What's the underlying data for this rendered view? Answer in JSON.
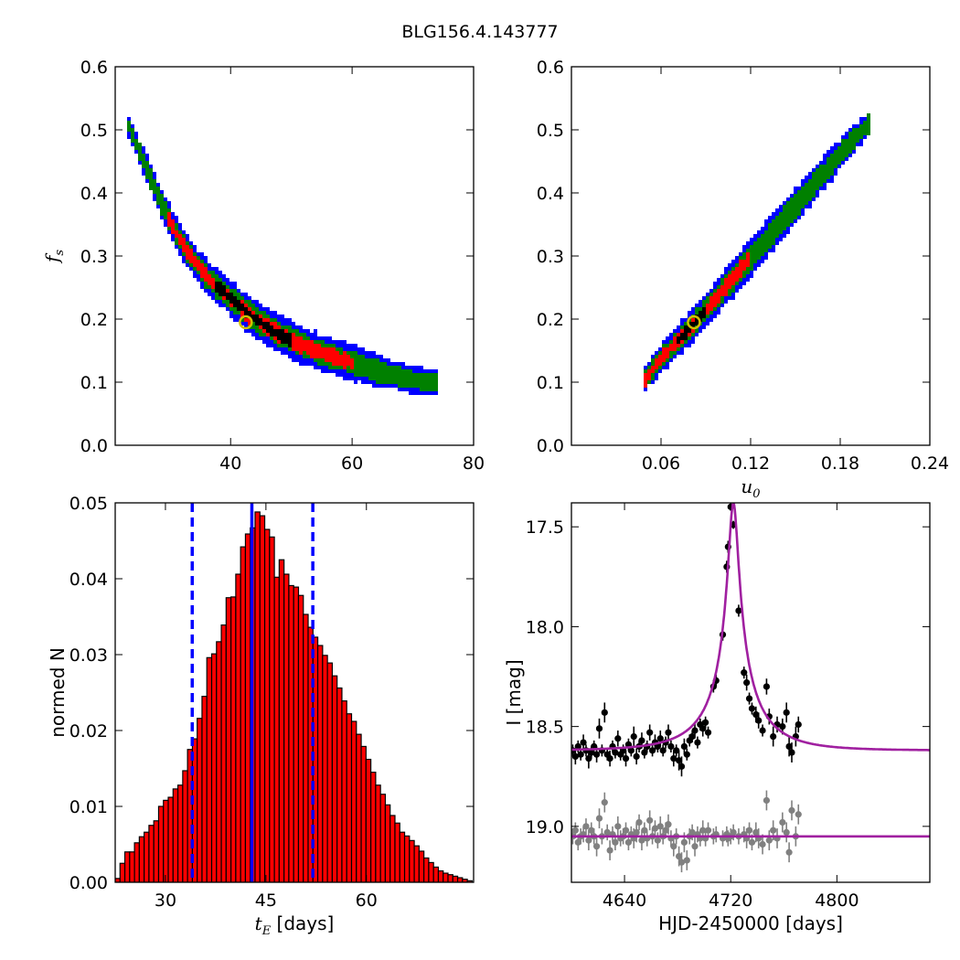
{
  "figure": {
    "suptitle": "BLG156.4.143777"
  },
  "chart_data": [
    {
      "id": "fs_vs_tE",
      "type": "heatmap",
      "title": "",
      "xlabel": "",
      "ylabel": "f_s",
      "xlim": [
        21,
        80
      ],
      "ylim": [
        0.0,
        0.6
      ],
      "xticks": [
        40,
        60,
        80
      ],
      "yticks": [
        0.0,
        0.1,
        0.2,
        0.3,
        0.4,
        0.5,
        0.6
      ],
      "contour_colors": [
        "#0000ff",
        "#008000",
        "#ff0000",
        "#000000"
      ],
      "best_fit": {
        "x": 42.5,
        "y": 0.195,
        "color": "#d4c200"
      },
      "ridge": [
        [
          22.5,
          0.515
        ],
        [
          24.5,
          0.47
        ],
        [
          26.5,
          0.425
        ],
        [
          28.5,
          0.38
        ],
        [
          30.5,
          0.34
        ],
        [
          33,
          0.3
        ],
        [
          36,
          0.265
        ],
        [
          39.5,
          0.235
        ],
        [
          43,
          0.205
        ],
        [
          47,
          0.18
        ],
        [
          51,
          0.16
        ],
        [
          55,
          0.145
        ],
        [
          60,
          0.13
        ],
        [
          65,
          0.115
        ],
        [
          70,
          0.103
        ],
        [
          74,
          0.098
        ]
      ],
      "black_segment": [
        37,
        50
      ],
      "red_segment": [
        29,
        60
      ]
    },
    {
      "id": "fs_vs_u0",
      "type": "heatmap",
      "title": "",
      "xlabel": "u_0",
      "ylabel": "",
      "xlim": [
        0.0,
        0.24
      ],
      "ylim": [
        0.0,
        0.6
      ],
      "xticks": [
        0.06,
        0.12,
        0.18,
        0.24
      ],
      "yticks": [
        0.0,
        0.1,
        0.2,
        0.3,
        0.4,
        0.5,
        0.6
      ],
      "contour_colors": [
        "#0000ff",
        "#008000",
        "#ff0000",
        "#000000"
      ],
      "best_fit": {
        "x": 0.082,
        "y": 0.195,
        "color": "#d4c200"
      },
      "ridge": [
        [
          0.046,
          0.098
        ],
        [
          0.06,
          0.14
        ],
        [
          0.08,
          0.19
        ],
        [
          0.1,
          0.245
        ],
        [
          0.12,
          0.3
        ],
        [
          0.14,
          0.355
        ],
        [
          0.16,
          0.41
        ],
        [
          0.18,
          0.465
        ],
        [
          0.2,
          0.515
        ]
      ],
      "black_segment": [
        0.068,
        0.088
      ],
      "red_segment": [
        0.048,
        0.118
      ]
    },
    {
      "id": "tE_histogram",
      "type": "bar",
      "title": "",
      "xlabel": "t_E [days]",
      "ylabel": "normed N",
      "xlim": [
        22.5,
        76
      ],
      "ylim": [
        0.0,
        0.05
      ],
      "xticks": [
        30,
        45,
        60
      ],
      "yticks": [
        0.0,
        0.01,
        0.02,
        0.03,
        0.04,
        0.05
      ],
      "yticklabels": [
        "0.00",
        "0.01",
        "0.02",
        "0.03",
        "0.04",
        "0.05"
      ],
      "bin_start": 22.5,
      "bin_width": 0.72,
      "bar_color": "#ff0000",
      "values": [
        0.0005,
        0.0025,
        0.004,
        0.004,
        0.0052,
        0.006,
        0.0066,
        0.0075,
        0.0081,
        0.01,
        0.0108,
        0.0112,
        0.0123,
        0.0128,
        0.0147,
        0.0175,
        0.0189,
        0.0216,
        0.0245,
        0.0296,
        0.0301,
        0.0317,
        0.0339,
        0.0375,
        0.0376,
        0.0406,
        0.0442,
        0.0459,
        0.0467,
        0.0488,
        0.0483,
        0.0465,
        0.0455,
        0.0402,
        0.0425,
        0.0406,
        0.0391,
        0.0389,
        0.0378,
        0.0353,
        0.0336,
        0.0323,
        0.0312,
        0.0299,
        0.0289,
        0.0272,
        0.0256,
        0.0239,
        0.0222,
        0.0212,
        0.0195,
        0.0179,
        0.0162,
        0.0145,
        0.0128,
        0.0116,
        0.0102,
        0.0088,
        0.0078,
        0.0066,
        0.0061,
        0.0055,
        0.0048,
        0.0041,
        0.0032,
        0.0026,
        0.002,
        0.0015,
        0.0012,
        0.001,
        0.0008,
        0.0006,
        0.0004,
        0.0002
      ],
      "vlines": [
        {
          "x": 42.9,
          "style": "solid",
          "color": "#0000ff"
        },
        {
          "x": 34.0,
          "style": "dashed",
          "color": "#0000ff"
        },
        {
          "x": 52.0,
          "style": "dashed",
          "color": "#0000ff"
        }
      ]
    },
    {
      "id": "light_curve",
      "type": "scatter",
      "title": "",
      "xlabel": "HJD-2450000 [days]",
      "ylabel": "I [mag]",
      "xlim": [
        4600,
        4870
      ],
      "ylim": [
        19.28,
        17.38
      ],
      "y_inverted": true,
      "xticks": [
        4640,
        4720,
        4800
      ],
      "yticks": [
        17.5,
        18.0,
        18.5,
        19.0
      ],
      "model_color": "#a020a0",
      "model_peak": {
        "t0": 4722,
        "peak_mag": 17.38,
        "base_mag": 18.62,
        "tE": 42.9,
        "u0": 0.082,
        "fs": 0.195
      },
      "model2_base_mag": 19.05,
      "series": [
        {
          "color": "#000000",
          "points": [
            [
              4601,
              18.62,
              0.03
            ],
            [
              4603,
              18.65,
              0.04
            ],
            [
              4605,
              18.6,
              0.03
            ],
            [
              4607,
              18.64,
              0.03
            ],
            [
              4609,
              18.58,
              0.04
            ],
            [
              4611,
              18.62,
              0.03
            ],
            [
              4613,
              18.66,
              0.05
            ],
            [
              4615,
              18.63,
              0.03
            ],
            [
              4617,
              18.6,
              0.03
            ],
            [
              4619,
              18.64,
              0.04
            ],
            [
              4621,
              18.51,
              0.05
            ],
            [
              4623,
              18.62,
              0.03
            ],
            [
              4625,
              18.43,
              0.05
            ],
            [
              4627,
              18.64,
              0.03
            ],
            [
              4629,
              18.66,
              0.04
            ],
            [
              4631,
              18.6,
              0.03
            ],
            [
              4633,
              18.63,
              0.03
            ],
            [
              4635,
              18.56,
              0.04
            ],
            [
              4637,
              18.64,
              0.03
            ],
            [
              4639,
              18.62,
              0.03
            ],
            [
              4641,
              18.66,
              0.04
            ],
            [
              4643,
              18.59,
              0.03
            ],
            [
              4645,
              18.62,
              0.03
            ],
            [
              4647,
              18.55,
              0.05
            ],
            [
              4649,
              18.65,
              0.04
            ],
            [
              4651,
              18.6,
              0.03
            ],
            [
              4653,
              18.57,
              0.04
            ],
            [
              4655,
              18.63,
              0.03
            ],
            [
              4657,
              18.6,
              0.03
            ],
            [
              4659,
              18.53,
              0.04
            ],
            [
              4661,
              18.62,
              0.03
            ],
            [
              4663,
              18.58,
              0.04
            ],
            [
              4665,
              18.6,
              0.03
            ],
            [
              4667,
              18.56,
              0.04
            ],
            [
              4669,
              18.62,
              0.03
            ],
            [
              4671,
              18.58,
              0.03
            ],
            [
              4673,
              18.53,
              0.04
            ],
            [
              4675,
              18.6,
              0.03
            ],
            [
              4677,
              18.66,
              0.04
            ],
            [
              4679,
              18.62,
              0.03
            ],
            [
              4681,
              18.67,
              0.05
            ],
            [
              4683,
              18.7,
              0.05
            ],
            [
              4685,
              18.6,
              0.04
            ],
            [
              4687,
              18.64,
              0.03
            ],
            [
              4689,
              18.57,
              0.03
            ],
            [
              4691,
              18.55,
              0.03
            ],
            [
              4693,
              18.52,
              0.04
            ],
            [
              4695,
              18.58,
              0.03
            ],
            [
              4697,
              18.49,
              0.03
            ],
            [
              4699,
              18.51,
              0.04
            ],
            [
              4701,
              18.48,
              0.03
            ],
            [
              4703,
              18.53,
              0.03
            ],
            [
              4707,
              18.3,
              0.03
            ],
            [
              4709,
              18.27,
              0.03
            ],
            [
              4714,
              18.04,
              0.03
            ],
            [
              4717,
              17.7,
              0.03
            ],
            [
              4718,
              17.6,
              0.03
            ],
            [
              4720,
              17.4,
              0.02
            ],
            [
              4722,
              17.49,
              0.02
            ],
            [
              4726,
              17.92,
              0.03
            ],
            [
              4730,
              18.23,
              0.03
            ],
            [
              4732,
              18.28,
              0.04
            ],
            [
              4734,
              18.36,
              0.03
            ],
            [
              4736,
              18.41,
              0.03
            ],
            [
              4739,
              18.44,
              0.04
            ],
            [
              4741,
              18.47,
              0.04
            ],
            [
              4744,
              18.52,
              0.03
            ],
            [
              4747,
              18.3,
              0.04
            ],
            [
              4749,
              18.45,
              0.04
            ],
            [
              4752,
              18.55,
              0.05
            ],
            [
              4755,
              18.49,
              0.04
            ],
            [
              4759,
              18.5,
              0.04
            ],
            [
              4762,
              18.43,
              0.05
            ],
            [
              4764,
              18.6,
              0.05
            ],
            [
              4766,
              18.63,
              0.05
            ],
            [
              4769,
              18.55,
              0.05
            ],
            [
              4771,
              18.49,
              0.04
            ]
          ]
        },
        {
          "color": "#808080",
          "points": [
            [
              4601,
              19.05,
              0.04
            ],
            [
              4603,
              19.02,
              0.04
            ],
            [
              4605,
              19.08,
              0.04
            ],
            [
              4607,
              19.05,
              0.04
            ],
            [
              4609,
              19.04,
              0.04
            ],
            [
              4611,
              19.0,
              0.04
            ],
            [
              4613,
              19.07,
              0.05
            ],
            [
              4615,
              19.02,
              0.04
            ],
            [
              4617,
              19.05,
              0.04
            ],
            [
              4619,
              19.1,
              0.05
            ],
            [
              4621,
              18.96,
              0.05
            ],
            [
              4623,
              19.05,
              0.04
            ],
            [
              4625,
              18.88,
              0.05
            ],
            [
              4627,
              19.03,
              0.04
            ],
            [
              4629,
              19.12,
              0.05
            ],
            [
              4631,
              19.04,
              0.04
            ],
            [
              4633,
              19.08,
              0.04
            ],
            [
              4635,
              19.0,
              0.05
            ],
            [
              4637,
              19.06,
              0.04
            ],
            [
              4639,
              19.05,
              0.04
            ],
            [
              4641,
              19.02,
              0.04
            ],
            [
              4643,
              19.08,
              0.04
            ],
            [
              4645,
              19.04,
              0.04
            ],
            [
              4647,
              19.06,
              0.05
            ],
            [
              4649,
              19.03,
              0.05
            ],
            [
              4651,
              18.98,
              0.04
            ],
            [
              4653,
              19.07,
              0.05
            ],
            [
              4655,
              19.02,
              0.04
            ],
            [
              4657,
              19.06,
              0.04
            ],
            [
              4659,
              18.97,
              0.05
            ],
            [
              4661,
              19.05,
              0.04
            ],
            [
              4663,
              19.01,
              0.04
            ],
            [
              4665,
              19.07,
              0.04
            ],
            [
              4667,
              19.0,
              0.05
            ],
            [
              4669,
              19.05,
              0.04
            ],
            [
              4671,
              19.02,
              0.04
            ],
            [
              4673,
              18.99,
              0.05
            ],
            [
              4675,
              19.06,
              0.04
            ],
            [
              4677,
              19.1,
              0.05
            ],
            [
              4679,
              19.05,
              0.04
            ],
            [
              4681,
              19.15,
              0.05
            ],
            [
              4683,
              19.18,
              0.05
            ],
            [
              4685,
              19.08,
              0.05
            ],
            [
              4687,
              19.17,
              0.05
            ],
            [
              4689,
              19.05,
              0.04
            ],
            [
              4691,
              19.03,
              0.04
            ],
            [
              4693,
              19.1,
              0.05
            ],
            [
              4695,
              19.04,
              0.04
            ],
            [
              4697,
              19.06,
              0.04
            ],
            [
              4699,
              19.02,
              0.05
            ],
            [
              4701,
              19.06,
              0.04
            ],
            [
              4703,
              19.02,
              0.04
            ],
            [
              4707,
              19.05,
              0.04
            ],
            [
              4709,
              19.04,
              0.04
            ],
            [
              4714,
              19.06,
              0.04
            ],
            [
              4717,
              19.04,
              0.04
            ],
            [
              4718,
              19.06,
              0.04
            ],
            [
              4720,
              19.05,
              0.04
            ],
            [
              4722,
              19.03,
              0.04
            ],
            [
              4726,
              19.05,
              0.04
            ],
            [
              4730,
              19.04,
              0.04
            ],
            [
              4732,
              19.06,
              0.05
            ],
            [
              4734,
              19.02,
              0.04
            ],
            [
              4736,
              19.08,
              0.04
            ],
            [
              4739,
              19.03,
              0.05
            ],
            [
              4741,
              19.06,
              0.05
            ],
            [
              4744,
              19.09,
              0.05
            ],
            [
              4747,
              18.87,
              0.05
            ],
            [
              4749,
              19.07,
              0.05
            ],
            [
              4752,
              19.02,
              0.05
            ],
            [
              4755,
              19.06,
              0.05
            ],
            [
              4759,
              18.98,
              0.05
            ],
            [
              4762,
              19.03,
              0.05
            ],
            [
              4764,
              19.13,
              0.05
            ],
            [
              4766,
              18.92,
              0.05
            ],
            [
              4769,
              19.05,
              0.05
            ],
            [
              4771,
              18.94,
              0.05
            ]
          ]
        }
      ]
    }
  ]
}
